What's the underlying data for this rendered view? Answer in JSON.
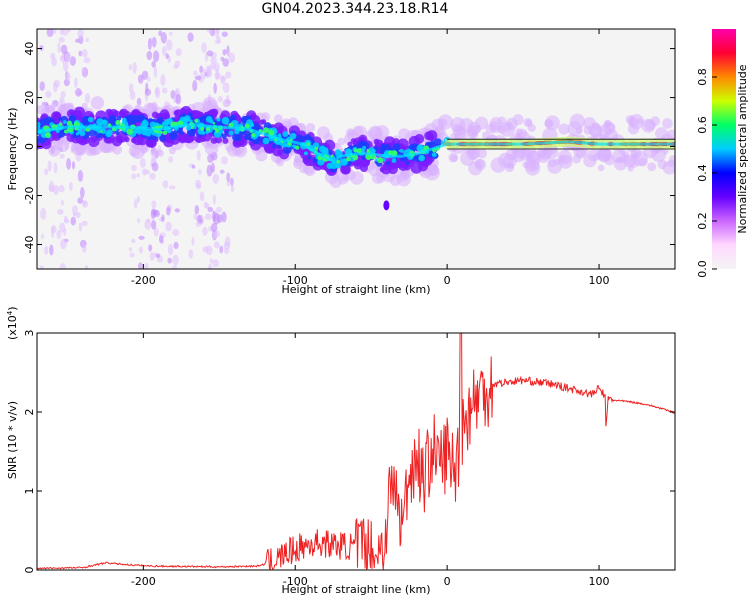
{
  "title": "GN04.2023.344.23.18.R14",
  "chart_data": [
    {
      "type": "heatmap",
      "xlabel": "Height of straight line (km)",
      "ylabel": "Frequency (Hz)",
      "xlim": [
        -270,
        150
      ],
      "ylim": [
        -50,
        48
      ],
      "xticks": [
        -200,
        -100,
        0,
        100
      ],
      "yticks": [
        -40,
        -20,
        0,
        20,
        40
      ],
      "grid": false,
      "colorbar": {
        "label": "Normalized spectral amplitude",
        "range": [
          0,
          1
        ],
        "ticks": [
          "0.0",
          "0.2",
          "0.4",
          "0.6",
          "0.8"
        ],
        "colors": [
          "#f4f4f4",
          "#ffd8ff",
          "#cc66ff",
          "#6600ff",
          "#0000ff",
          "#00ccff",
          "#00ff66",
          "#ccff00",
          "#ff8800",
          "#ff0033",
          "#ff00aa"
        ]
      },
      "ridge": {
        "x": [
          -270,
          -250,
          -230,
          -210,
          -190,
          -170,
          -150,
          -130,
          -110,
          -95,
          -85,
          -75,
          -70,
          -60,
          -50,
          -40,
          -30,
          -20,
          -10,
          0,
          20,
          50,
          80,
          100,
          150
        ],
        "frequency": [
          6,
          8,
          8,
          8,
          7,
          9,
          8,
          7,
          3,
          1,
          -3,
          -6,
          -4,
          -3,
          -3,
          -4,
          -4,
          -3,
          -1,
          1,
          1,
          1,
          2,
          1,
          1
        ]
      },
      "vertical_streaks_x": [
        -258,
        -245,
        -200,
        -185,
        -160,
        -150
      ]
    },
    {
      "type": "line",
      "xlabel": "Height of straight line (km)",
      "ylabel": "SNR (10 * v/v)",
      "scale_note": "(x10",
      "scale_exp": "4",
      "xlim": [
        -270,
        150
      ],
      "ylim": [
        0,
        3
      ],
      "xticks": [
        -200,
        -100,
        0,
        100
      ],
      "yticks": [
        0,
        1,
        2,
        3
      ],
      "grid": false,
      "series": [
        {
          "color": "#ee2222",
          "x": [
            -270,
            -240,
            -225,
            -205,
            -195,
            -150,
            -125,
            -115,
            -105,
            -95,
            -85,
            -75,
            -65,
            -55,
            -48,
            -42,
            -38,
            -35,
            -30,
            -25,
            -20,
            -15,
            -10,
            -5,
            0,
            5,
            10,
            15,
            20,
            30,
            40,
            50,
            60,
            70,
            80,
            90,
            95,
            100,
            105,
            110,
            120,
            130,
            140,
            150
          ],
          "values": [
            0.02,
            0.03,
            0.09,
            0.06,
            0.05,
            0.04,
            0.05,
            0.1,
            0.22,
            0.3,
            0.35,
            0.32,
            0.3,
            0.28,
            0.22,
            0.3,
            0.95,
            1.1,
            0.55,
            1.2,
            1.45,
            1.15,
            1.55,
            1.35,
            1.5,
            1.25,
            1.8,
            2.05,
            2.2,
            2.35,
            2.38,
            2.4,
            2.38,
            2.35,
            2.3,
            2.25,
            2.22,
            2.3,
            2.18,
            2.15,
            2.13,
            2.1,
            2.05,
            1.99
          ]
        }
      ]
    }
  ]
}
